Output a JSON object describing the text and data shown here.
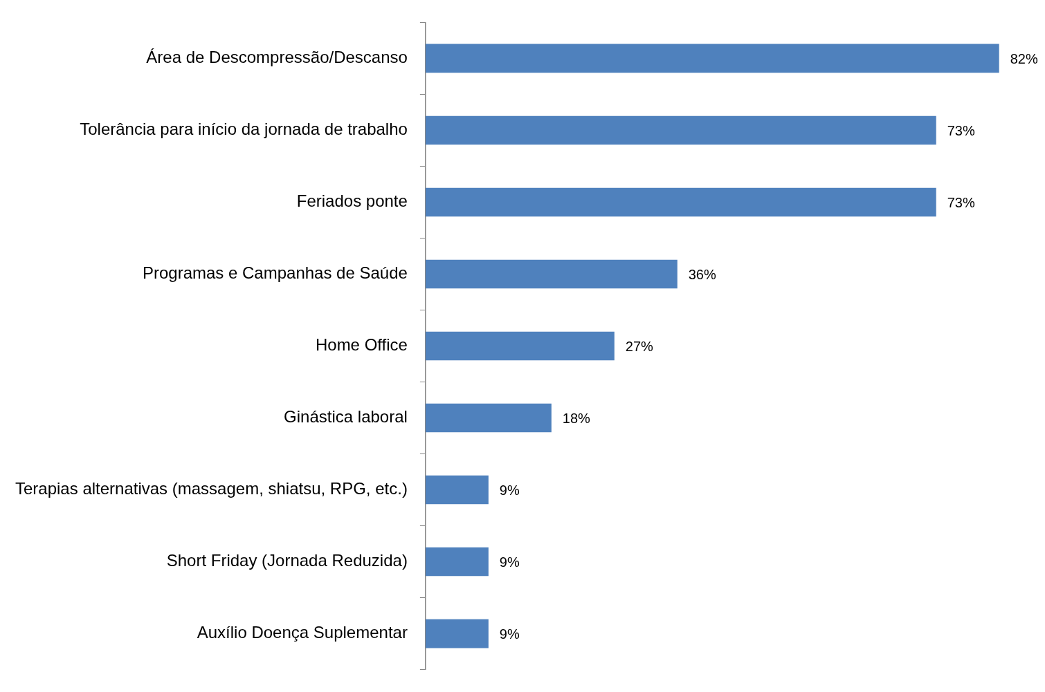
{
  "chart_data": {
    "type": "bar",
    "orientation": "horizontal",
    "tick_labels": "y",
    "categories": [
      "Área de Descompressão/Descanso",
      "Tolerância para início da jornada de trabalho",
      "Feriados ponte",
      "Programas e Campanhas de Saúde",
      "Home Office",
      "Ginástica laboral",
      "Terapias alternativas (massagem, shiatsu, RPG, etc.)",
      "Short Friday (Jornada Reduzida)",
      "Auxílio Doença Suplementar"
    ],
    "values": [
      82,
      73,
      73,
      36,
      27,
      18,
      9,
      9,
      9
    ],
    "value_labels": [
      "82%",
      "73%",
      "73%",
      "36%",
      "27%",
      "18%",
      "9%",
      "9%",
      "9%"
    ],
    "color": "#4f81bd",
    "legend": false
  }
}
